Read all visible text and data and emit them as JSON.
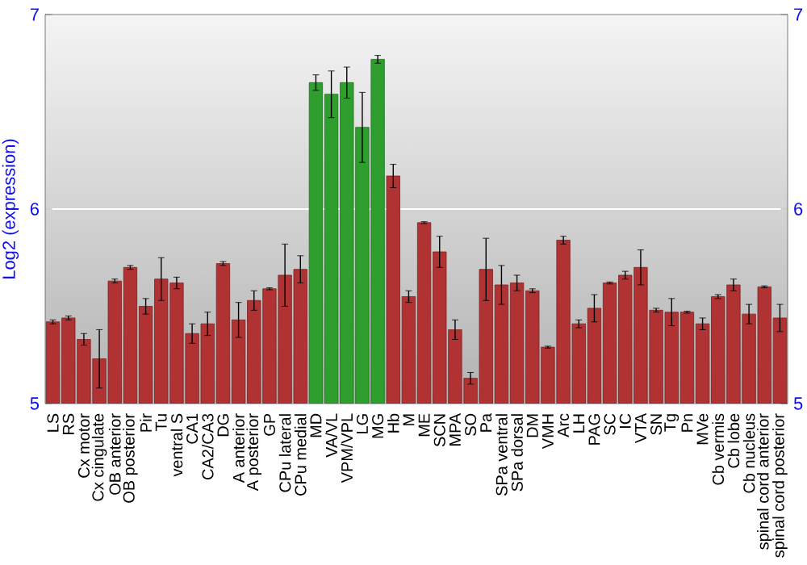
{
  "chart_data": {
    "type": "bar",
    "ylabel": "Log2 (expression)",
    "categories": [
      "LS",
      "RS",
      "Cx motor",
      "Cx cingulate",
      "OB anterior",
      "OB posterior",
      "Pir",
      "Tu",
      "ventral S",
      "CA1",
      "CA2/CA3",
      "DG",
      "A anterior",
      "A posterior",
      "GP",
      "CPu lateral",
      "CPu medial",
      "MD",
      "VA/VL",
      "VPM/VPL",
      "LG",
      "MG",
      "Hb",
      "M",
      "ME",
      "SCN",
      "MPA",
      "SO",
      "Pa",
      "SPa ventral",
      "SPa dorsal",
      "DM",
      "VMH",
      "Arc",
      "LH",
      "PAG",
      "SC",
      "IC",
      "VTA",
      "SN",
      "Tg",
      "Pn",
      "MVe",
      "Cb vermis",
      "Cb lobe",
      "Cb nucleus",
      "spinal cord anterior",
      "spinal cord posterior"
    ],
    "values": [
      5.42,
      5.44,
      5.33,
      5.23,
      5.63,
      5.7,
      5.5,
      5.64,
      5.62,
      5.36,
      5.41,
      5.72,
      5.43,
      5.53,
      5.59,
      5.66,
      5.69,
      6.65,
      6.59,
      6.65,
      6.42,
      6.77,
      6.17,
      5.55,
      5.93,
      5.78,
      5.38,
      5.13,
      5.69,
      5.61,
      5.62,
      5.58,
      5.29,
      5.84,
      5.41,
      5.49,
      5.62,
      5.66,
      5.7,
      5.48,
      5.47,
      5.47,
      5.41,
      5.55,
      5.61,
      5.46,
      5.6,
      5.44
    ],
    "errors": [
      0.01,
      0.01,
      0.03,
      0.15,
      0.01,
      0.01,
      0.04,
      0.11,
      0.03,
      0.05,
      0.06,
      0.01,
      0.09,
      0.05,
      0.005,
      0.16,
      0.07,
      0.04,
      0.12,
      0.08,
      0.18,
      0.02,
      0.06,
      0.03,
      0.005,
      0.08,
      0.05,
      0.03,
      0.16,
      0.1,
      0.04,
      0.01,
      0.005,
      0.02,
      0.02,
      0.07,
      0.005,
      0.02,
      0.09,
      0.01,
      0.07,
      0.005,
      0.03,
      0.01,
      0.03,
      0.05,
      0.005,
      0.07
    ],
    "colors": [
      "#b03232",
      "#b03232",
      "#b03232",
      "#b03232",
      "#b03232",
      "#b03232",
      "#b03232",
      "#b03232",
      "#b03232",
      "#b03232",
      "#b03232",
      "#b03232",
      "#b03232",
      "#b03232",
      "#b03232",
      "#b03232",
      "#b03232",
      "#2e9e2e",
      "#2e9e2e",
      "#2e9e2e",
      "#2e9e2e",
      "#2e9e2e",
      "#b03232",
      "#b03232",
      "#b03232",
      "#b03232",
      "#b03232",
      "#b03232",
      "#b03232",
      "#b03232",
      "#b03232",
      "#b03232",
      "#b03232",
      "#b03232",
      "#b03232",
      "#b03232",
      "#b03232",
      "#b03232",
      "#b03232",
      "#b03232",
      "#b03232",
      "#b03232",
      "#b03232",
      "#b03232",
      "#b03232",
      "#b03232",
      "#b03232",
      "#b03232"
    ],
    "ylim": [
      5,
      7
    ],
    "yticks": [
      5,
      6,
      7
    ],
    "y2lim": [
      5,
      7
    ],
    "y2ticks": [
      5,
      6,
      7
    ],
    "grid": "y"
  }
}
